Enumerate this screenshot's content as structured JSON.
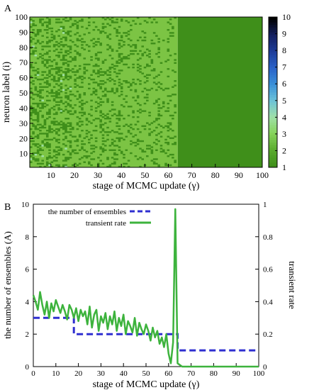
{
  "figure": {
    "panels": {
      "a": {
        "label": "A"
      },
      "b": {
        "label": "B"
      }
    }
  },
  "colors": {
    "heatmap_light": "#7cc444",
    "heatmap_dark": "#3f8f1a",
    "heatmap_mid": "#5aa832",
    "heatmap_speck": "#9fe0a8",
    "ensembles_line": "#2f2fd0",
    "transient_line": "#3db33d",
    "axis": "#000000"
  },
  "chart_data": [
    {
      "type": "heatmap",
      "panel": "A",
      "xlabel": "stage of MCMC update (γ)",
      "ylabel": "neuron label (i)",
      "xlim": [
        1,
        100
      ],
      "ylim": [
        1,
        100
      ],
      "xticks": [
        10,
        20,
        30,
        40,
        50,
        60,
        70,
        80,
        90,
        100
      ],
      "yticks": [
        10,
        20,
        30,
        40,
        50,
        60,
        70,
        80,
        90,
        100
      ],
      "colorbar": {
        "range": [
          1,
          10
        ],
        "ticks": [
          1,
          2,
          3,
          4,
          5,
          6,
          7,
          8,
          9,
          10
        ],
        "colors": [
          "#3f8f1a",
          "#5aab2f",
          "#86d35a",
          "#9fe0a8",
          "#6cc2d8",
          "#3a90d8",
          "#2a62c8",
          "#1e3c98",
          "#142060",
          "#000000"
        ]
      },
      "regions": [
        {
          "x_range": [
            1,
            19
          ],
          "description_values": [
            1,
            2,
            3
          ],
          "dominant": 2
        },
        {
          "x_range": [
            19,
            64
          ],
          "description_values": [
            1,
            2
          ],
          "dominant": 2
        },
        {
          "x_range": [
            64,
            100
          ],
          "description_values": [
            1
          ],
          "dominant": 1
        }
      ]
    },
    {
      "type": "line",
      "panel": "B",
      "xlabel": "stage of MCMC update (γ)",
      "ylabel": "the number of ensembles (A)",
      "y2label": "transient rate",
      "xlim": [
        0,
        100
      ],
      "ylim": [
        0,
        10
      ],
      "y2lim": [
        0,
        1
      ],
      "xticks": [
        0,
        10,
        20,
        30,
        40,
        50,
        60,
        70,
        80,
        90,
        100
      ],
      "yticks": [
        0,
        2,
        4,
        6,
        8,
        10
      ],
      "y2ticks": [
        0,
        0.2,
        0.4,
        0.6,
        0.8,
        1
      ],
      "legend": "top-left",
      "series": [
        {
          "name": "the number of ensembles",
          "axis": "left",
          "style": "dashed",
          "x": [
            0,
            18,
            18,
            64,
            64,
            100
          ],
          "values": [
            3,
            3,
            2,
            2,
            1,
            1
          ]
        },
        {
          "name": "transient rate",
          "axis": "right",
          "style": "solid",
          "x": [
            0,
            1,
            2,
            3,
            4,
            5,
            6,
            7,
            8,
            9,
            10,
            11,
            12,
            13,
            14,
            15,
            16,
            17,
            18,
            19,
            20,
            21,
            22,
            23,
            24,
            25,
            26,
            27,
            28,
            29,
            30,
            31,
            32,
            33,
            34,
            35,
            36,
            37,
            38,
            39,
            40,
            41,
            42,
            43,
            44,
            45,
            46,
            47,
            48,
            49,
            50,
            51,
            52,
            53,
            54,
            55,
            56,
            57,
            58,
            59,
            60,
            61,
            62,
            63,
            64,
            65,
            66,
            67,
            68,
            69,
            70,
            80,
            90,
            100
          ],
          "values": [
            0.44,
            0.4,
            0.35,
            0.46,
            0.38,
            0.32,
            0.4,
            0.3,
            0.39,
            0.34,
            0.41,
            0.37,
            0.33,
            0.38,
            0.34,
            0.29,
            0.38,
            0.35,
            0.3,
            0.36,
            0.28,
            0.35,
            0.31,
            0.34,
            0.26,
            0.37,
            0.24,
            0.32,
            0.35,
            0.22,
            0.31,
            0.27,
            0.33,
            0.23,
            0.31,
            0.26,
            0.34,
            0.22,
            0.3,
            0.25,
            0.32,
            0.2,
            0.28,
            0.25,
            0.21,
            0.3,
            0.19,
            0.27,
            0.23,
            0.2,
            0.26,
            0.22,
            0.16,
            0.24,
            0.18,
            0.22,
            0.14,
            0.18,
            0.12,
            0.2,
            0.08,
            0.02,
            0.15,
            0.97,
            0.02,
            0.01,
            0.0,
            0.0,
            0.0,
            0.0,
            0.0,
            0.0,
            0.0,
            0.0
          ]
        }
      ]
    }
  ]
}
